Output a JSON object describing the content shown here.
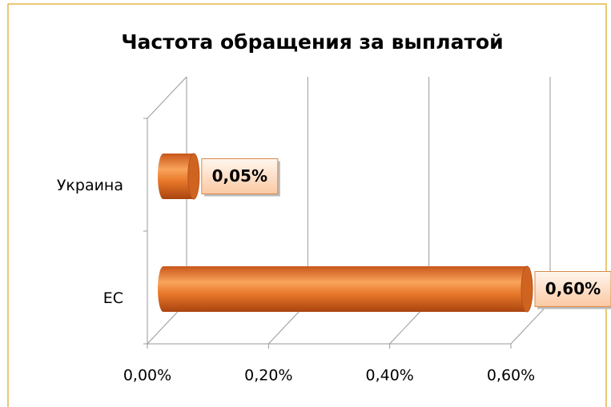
{
  "chart_data": {
    "type": "bar",
    "orientation": "horizontal",
    "title": "Частота обращения за выплатой",
    "categories": [
      "Украина",
      "ЕС"
    ],
    "values": [
      0.05,
      0.6
    ],
    "value_labels": [
      "0,05%",
      "0,60%"
    ],
    "color": "#e8782a",
    "xlim": [
      0,
      0.6
    ],
    "xticks": [
      {
        "value": 0,
        "label": "0,00%"
      },
      {
        "value": 0.2,
        "label": "0,20%"
      },
      {
        "value": 0.4,
        "label": "0,40%"
      },
      {
        "value": 0.6,
        "label": "0,60%"
      }
    ],
    "grid": true
  }
}
